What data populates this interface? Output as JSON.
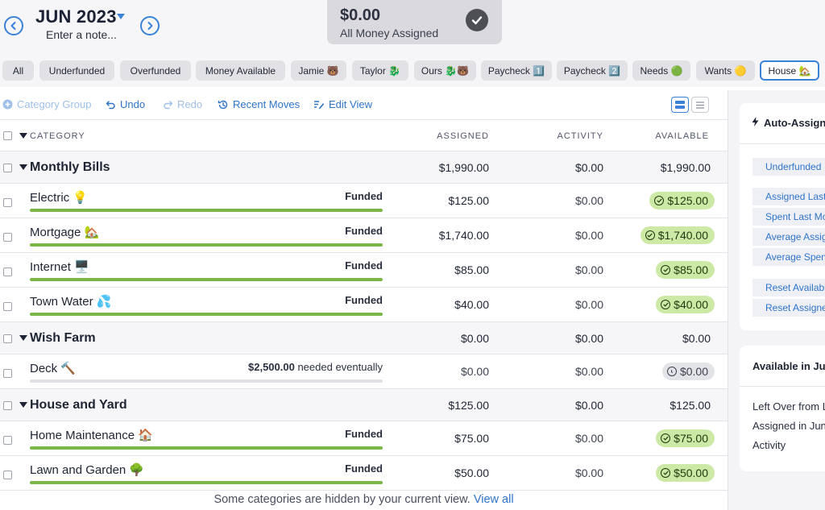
{
  "header": {
    "month": "JUN 2023",
    "note_placeholder": "Enter a note...",
    "assigned_amount": "$0.00",
    "assigned_label": "All Money Assigned"
  },
  "filters": [
    "All",
    "Underfunded",
    "Overfunded",
    "Money Available",
    "Jamie 🐻",
    "Taylor 🐉",
    "Ours 🐉🐻",
    "Paycheck 1️⃣",
    "Paycheck 2️⃣",
    "Needs 🟢",
    "Wants 🟡",
    "House 🏡"
  ],
  "filters_active": "House 🏡",
  "toolbar": {
    "category_group": "Category Group",
    "undo": "Undo",
    "redo": "Redo",
    "recent_moves": "Recent Moves",
    "edit_view": "Edit View"
  },
  "table": {
    "columns": {
      "category": "CATEGORY",
      "assigned": "ASSIGNED",
      "activity": "ACTIVITY",
      "available": "AVAILABLE"
    },
    "groups": [
      {
        "name": "Monthly Bills",
        "assigned": "$1,990.00",
        "activity": "$0.00",
        "available": "$1,990.00",
        "categories": [
          {
            "name": "Electric 💡",
            "goal": "Funded",
            "goal_rest": "",
            "assigned": "$125.00",
            "activity": "$0.00",
            "available": "$125.00",
            "funded_fraction": 1.0
          },
          {
            "name": "Mortgage 🏡",
            "goal": "Funded",
            "goal_rest": "",
            "assigned": "$1,740.00",
            "activity": "$0.00",
            "available": "$1,740.00",
            "funded_fraction": 1.0
          },
          {
            "name": "Internet 🖥️",
            "goal": "Funded",
            "goal_rest": "",
            "assigned": "$85.00",
            "activity": "$0.00",
            "available": "$85.00",
            "funded_fraction": 1.0
          },
          {
            "name": "Town Water 💦",
            "goal": "Funded",
            "goal_rest": "",
            "assigned": "$40.00",
            "activity": "$0.00",
            "available": "$40.00",
            "funded_fraction": 1.0
          }
        ]
      },
      {
        "name": "Wish Farm",
        "assigned": "$0.00",
        "activity": "$0.00",
        "available": "$0.00",
        "categories": [
          {
            "name": "Deck 🔨",
            "goal": "$2,500.00",
            "goal_rest": " needed eventually",
            "assigned": "$0.00",
            "activity": "$0.00",
            "available": "$0.00",
            "funded_fraction": 0.0
          }
        ]
      },
      {
        "name": "House and Yard",
        "assigned": "$125.00",
        "activity": "$0.00",
        "available": "$125.00",
        "categories": [
          {
            "name": "Home Maintenance 🏠",
            "goal": "Funded",
            "goal_rest": "",
            "assigned": "$75.00",
            "activity": "$0.00",
            "available": "$75.00",
            "funded_fraction": 1.0
          },
          {
            "name": "Lawn and Garden 🌳",
            "goal": "Funded",
            "goal_rest": "",
            "assigned": "$50.00",
            "activity": "$0.00",
            "available": "$50.00",
            "funded_fraction": 1.0
          }
        ]
      }
    ],
    "hidden_note": "Some categories are hidden by your current view.",
    "view_all": "View all"
  },
  "right_panel": {
    "auto_assign_title": "Auto-Assign",
    "auto_buttons_a": [
      "Underfunded"
    ],
    "auto_buttons_b": [
      "Assigned Last Month",
      "Spent Last Month",
      "Average Assigned",
      "Average Spent"
    ],
    "auto_buttons_c": [
      "Reset Available Amounts",
      "Reset Assigned Amounts"
    ],
    "available_title": "Available in June",
    "available_lines": [
      "Left Over from Last Month",
      "Assigned in June",
      "Activity"
    ]
  },
  "colors": {
    "accent": "#3a82d8",
    "funded_green": "#7ab648",
    "pill_green": "#cde9a6"
  },
  "icons": {
    "prev": "chevron-left-icon",
    "next": "chevron-right-icon",
    "assigned_status": "checkmark-circle-icon",
    "category_group": "plus-circle-icon",
    "undo": "undo-icon",
    "redo": "redo-icon",
    "recent_moves": "history-icon",
    "edit_view": "edit-list-icon",
    "auto_assign": "lightning-icon",
    "available_pill": "check-circle-icon",
    "empty_pill": "clock-icon"
  }
}
